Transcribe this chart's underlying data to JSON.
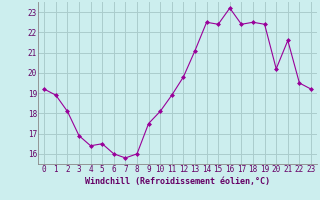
{
  "x": [
    0,
    1,
    2,
    3,
    4,
    5,
    6,
    7,
    8,
    9,
    10,
    11,
    12,
    13,
    14,
    15,
    16,
    17,
    18,
    19,
    20,
    21,
    22,
    23
  ],
  "y": [
    19.2,
    18.9,
    18.1,
    16.9,
    16.4,
    16.5,
    16.0,
    15.8,
    16.0,
    17.5,
    18.1,
    18.9,
    19.8,
    21.1,
    22.5,
    22.4,
    23.2,
    22.4,
    22.5,
    22.4,
    20.2,
    21.6,
    19.5,
    19.2
  ],
  "line_color": "#990099",
  "marker": "D",
  "marker_size": 2,
  "bg_color": "#cceeee",
  "grid_color": "#aacccc",
  "xlabel": "Windchill (Refroidissement éolien,°C)",
  "xlabel_color": "#660066",
  "tick_color": "#660066",
  "ylim": [
    15.5,
    23.5
  ],
  "xlim": [
    -0.5,
    23.5
  ],
  "yticks": [
    16,
    17,
    18,
    19,
    20,
    21,
    22,
    23
  ],
  "xticks": [
    0,
    1,
    2,
    3,
    4,
    5,
    6,
    7,
    8,
    9,
    10,
    11,
    12,
    13,
    14,
    15,
    16,
    17,
    18,
    19,
    20,
    21,
    22,
    23
  ],
  "xtick_labels": [
    "0",
    "1",
    "2",
    "3",
    "4",
    "5",
    "6",
    "7",
    "8",
    "9",
    "10",
    "11",
    "12",
    "13",
    "14",
    "15",
    "16",
    "17",
    "18",
    "19",
    "20",
    "21",
    "22",
    "23"
  ],
  "label_fontsize": 6,
  "tick_fontsize": 5.5
}
